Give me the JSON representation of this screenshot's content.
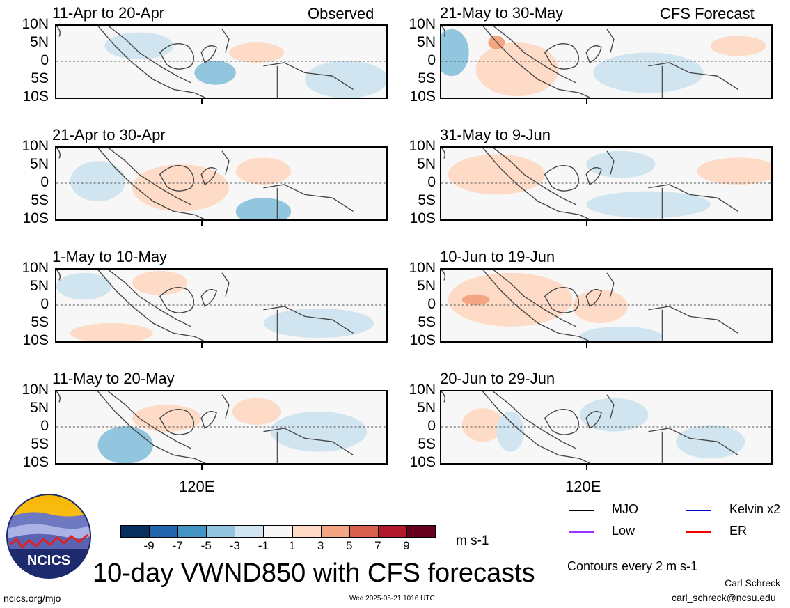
{
  "corner_labels": {
    "left": "Observed",
    "right": "CFS Forecast"
  },
  "panels": [
    {
      "title": "11-Apr to 20-Apr",
      "column": "observed"
    },
    {
      "title": "21-Apr to 30-Apr",
      "column": "observed"
    },
    {
      "title": "1-May to 10-May",
      "column": "observed"
    },
    {
      "title": "11-May to 20-May",
      "column": "observed"
    },
    {
      "title": "21-May to 30-May",
      "column": "forecast"
    },
    {
      "title": "31-May to 9-Jun",
      "column": "forecast"
    },
    {
      "title": "10-Jun to 19-Jun",
      "column": "forecast"
    },
    {
      "title": "20-Jun to 29-Jun",
      "column": "forecast"
    }
  ],
  "y_ticks": [
    "10N",
    "5N",
    "0",
    "5S",
    "10S"
  ],
  "x_label": "120E",
  "colorbar": {
    "unit": "m s-1",
    "tick_labels": [
      "-9",
      "-7",
      "-5",
      "-3",
      "-1",
      "1",
      "3",
      "5",
      "7",
      "9"
    ],
    "colors": [
      "#08305e",
      "#2166ac",
      "#4393c3",
      "#92c5de",
      "#d1e5f0",
      "#f7f7f7",
      "#fddbc7",
      "#f4a582",
      "#d6604d",
      "#b2182b",
      "#67001f"
    ]
  },
  "legend": {
    "items": [
      {
        "label": "MJO",
        "color": "#000000"
      },
      {
        "label": "Kelvin x2",
        "color": "#0000cc"
      },
      {
        "label": "Low",
        "color": "#9933ff"
      },
      {
        "label": "ER",
        "color": "#ee0000"
      }
    ],
    "contours_note": "Contours every 2 m s-1"
  },
  "logo": {
    "text": "NCICS"
  },
  "footer": {
    "title": "10-day VWND850 with CFS forecasts",
    "url": "ncics.org/mjo",
    "timestamp": "Wed 2025-05-21 1016 UTC",
    "author": "Carl Schreck",
    "email": "carl_schreck@ncsu.edu"
  }
}
